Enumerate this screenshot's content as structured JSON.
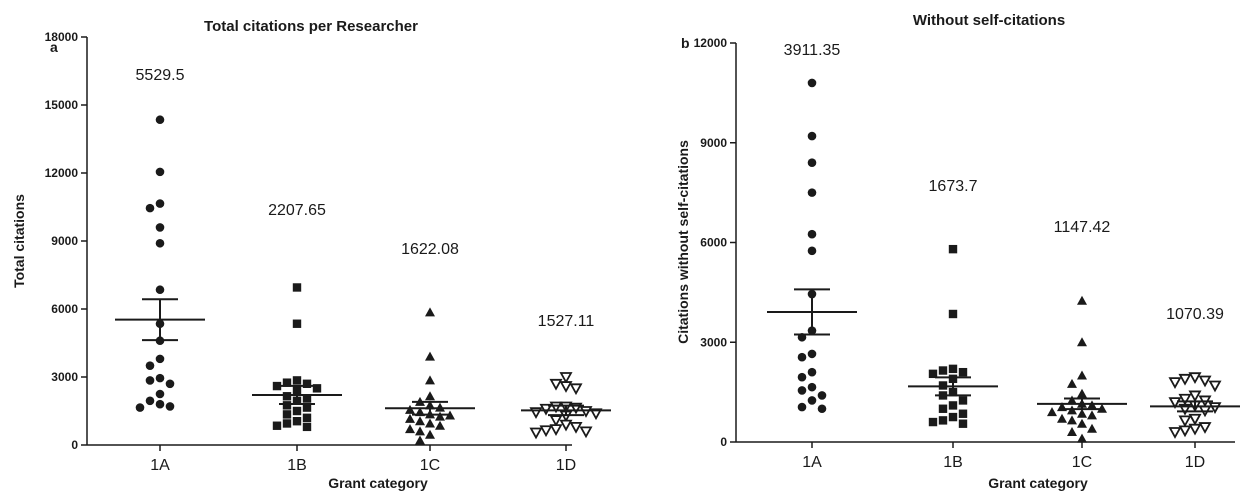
{
  "chart_data": [
    {
      "type": "scatter",
      "panel": "a",
      "title": "Total citations per Researcher",
      "xlabel": "Grant category",
      "ylabel": "Total citations",
      "ylim": [
        0,
        18000
      ],
      "yticks": [
        "0",
        "3000",
        "6000",
        "9000",
        "12000",
        "15000",
        "18000"
      ],
      "categories": [
        "1A",
        "1B",
        "1C",
        "1D"
      ],
      "markers": [
        "circle",
        "square",
        "triangle",
        "triangle-down-open"
      ],
      "means": [
        5529.5,
        2207.65,
        1622.08,
        1527.11
      ],
      "mean_labels": [
        "5529.5",
        "2207.65",
        "1622.08",
        "1527.11"
      ],
      "sem": [
        900,
        400,
        280,
        210
      ],
      "points": [
        [
          14350,
          12050,
          10650,
          10450,
          9600,
          8900,
          6850,
          5350,
          4600,
          3800,
          3500,
          2950,
          2850,
          2700,
          2250,
          1950,
          1800,
          1700,
          1650
        ],
        [
          6950,
          5350,
          2850,
          2750,
          2700,
          2600,
          2500,
          2400,
          2150,
          2050,
          1950,
          1750,
          1650,
          1500,
          1350,
          1200,
          1050,
          950,
          850,
          800
        ],
        [
          5850,
          3900,
          2850,
          2150,
          1900,
          1750,
          1650,
          1550,
          1450,
          1350,
          1300,
          1250,
          1150,
          1050,
          950,
          850,
          700,
          600,
          450,
          200
        ],
        [
          3000,
          2700,
          2600,
          2500,
          1700,
          1700,
          1650,
          1600,
          1500,
          1450,
          1400,
          1300,
          1100,
          900,
          800,
          700,
          650,
          600,
          550
        ]
      ]
    },
    {
      "type": "scatter",
      "panel": "b",
      "title": "Without self-citations",
      "xlabel": "Grant category",
      "ylabel": "Citations without self-citations",
      "ylim": [
        0,
        12000
      ],
      "yticks": [
        "0",
        "3000",
        "6000",
        "9000",
        "12000"
      ],
      "categories": [
        "1A",
        "1B",
        "1C",
        "1D"
      ],
      "markers": [
        "circle",
        "square",
        "triangle",
        "triangle-down-open"
      ],
      "means": [
        3911.35,
        1673.7,
        1147.42,
        1070.39
      ],
      "mean_labels": [
        "3911.35",
        "1673.7",
        "1147.42",
        "1070.39"
      ],
      "sem": [
        680,
        270,
        160,
        150
      ],
      "points": [
        [
          10800,
          9200,
          8400,
          7500,
          6250,
          5750,
          4450,
          3350,
          3150,
          2650,
          2550,
          2100,
          1950,
          1650,
          1550,
          1400,
          1250,
          1050,
          1000
        ],
        [
          5800,
          3850,
          2200,
          2150,
          2100,
          2050,
          1900,
          1700,
          1500,
          1400,
          1250,
          1100,
          1000,
          850,
          750,
          650,
          600,
          550
        ],
        [
          4250,
          3000,
          2000,
          1750,
          1450,
          1250,
          1150,
          1100,
          1050,
          1000,
          950,
          900,
          850,
          800,
          700,
          650,
          550,
          400,
          300,
          100
        ],
        [
          1950,
          1900,
          1850,
          1800,
          1700,
          1400,
          1300,
          1250,
          1200,
          1100,
          1050,
          1000,
          950,
          700,
          650,
          450,
          400,
          350,
          300
        ]
      ]
    }
  ]
}
